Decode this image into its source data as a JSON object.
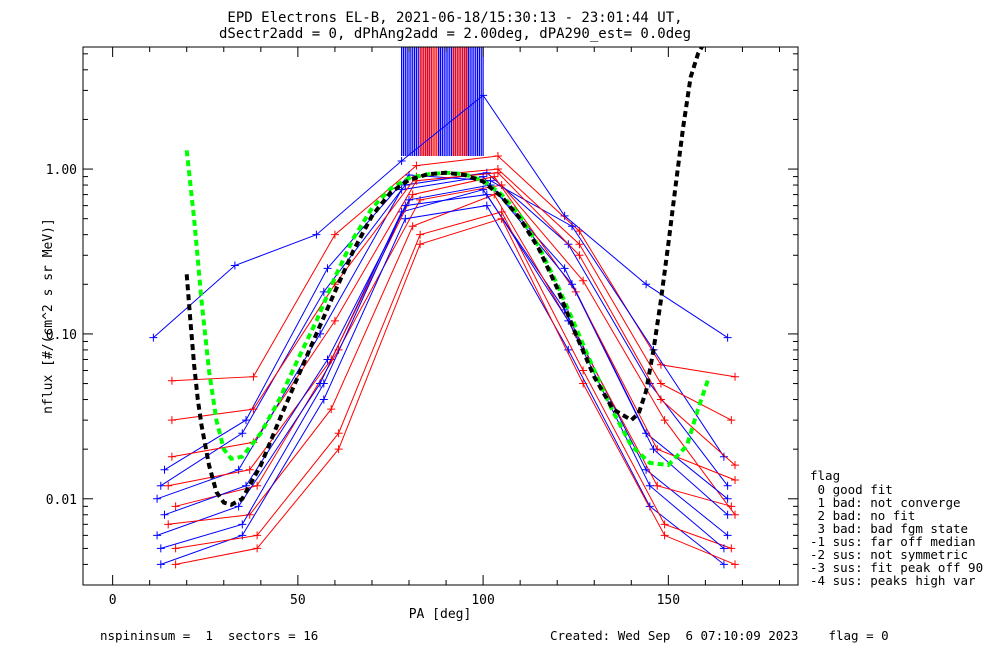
{
  "chart_data": {
    "type": "line",
    "title": "EPD Electrons EL-B, 2021-06-18/15:30:13 - 23:01:44 UT,",
    "subtitle": "dSectr2add = 0, dPhAng2add = 2.00deg, dPA290_est=   0.0deg",
    "xlabel": "PA [deg]",
    "ylabel": "nflux [#/(cm^2 s sr MeV)]",
    "xlim": [
      -8,
      185
    ],
    "ylim": [
      0.003,
      5.5
    ],
    "yscale": "log",
    "xticks": [
      {
        "v": 0,
        "label": "0"
      },
      {
        "v": 50,
        "label": "50"
      },
      {
        "v": 100,
        "label": "100"
      },
      {
        "v": 150,
        "label": "150"
      }
    ],
    "yticks": [
      {
        "v": 0.01,
        "label": "0.01"
      },
      {
        "v": 0.1,
        "label": "0.10"
      },
      {
        "v": 1.0,
        "label": "1.00"
      }
    ],
    "colors": {
      "blue": "#0000ff",
      "red": "#ff0000",
      "fit_black": "#000000",
      "fit_green": "#00ff00"
    },
    "series": [
      {
        "color": "blue",
        "x": [
          11,
          33,
          55,
          78,
          100,
          122,
          144,
          166
        ],
        "y": [
          0.095,
          0.26,
          0.4,
          1.12,
          2.8,
          0.52,
          0.2,
          0.095
        ]
      },
      {
        "color": "red",
        "x": [
          16,
          38,
          60,
          82,
          104,
          126,
          148,
          168
        ],
        "y": [
          0.052,
          0.055,
          0.4,
          1.05,
          1.2,
          0.42,
          0.065,
          0.055
        ]
      },
      {
        "color": "blue",
        "x": [
          13,
          35,
          57,
          79,
          101,
          123,
          145,
          166
        ],
        "y": [
          0.012,
          0.025,
          0.18,
          0.8,
          0.95,
          0.35,
          0.05,
          0.012
        ]
      },
      {
        "color": "red",
        "x": [
          17,
          39,
          61,
          83,
          105,
          127,
          149,
          168
        ],
        "y": [
          0.009,
          0.012,
          0.08,
          0.65,
          0.8,
          0.21,
          0.03,
          0.008
        ]
      },
      {
        "color": "blue",
        "x": [
          12,
          34,
          56,
          78,
          100,
          122,
          144,
          166
        ],
        "y": [
          0.006,
          0.009,
          0.05,
          0.55,
          0.75,
          0.14,
          0.015,
          0.006
        ]
      },
      {
        "color": "red",
        "x": [
          15,
          37,
          59,
          81,
          103,
          125,
          147,
          167
        ],
        "y": [
          0.007,
          0.008,
          0.035,
          0.45,
          0.7,
          0.1,
          0.012,
          0.009
        ]
      },
      {
        "color": "blue",
        "x": [
          14,
          36,
          58,
          80,
          102,
          124,
          146,
          165
        ],
        "y": [
          0.015,
          0.03,
          0.25,
          0.92,
          0.85,
          0.45,
          0.08,
          0.018
        ]
      },
      {
        "color": "red",
        "x": [
          16,
          38,
          60,
          82,
          104,
          126,
          148,
          168
        ],
        "y": [
          0.018,
          0.022,
          0.12,
          0.85,
          0.95,
          0.3,
          0.04,
          0.016
        ]
      },
      {
        "color": "blue",
        "x": [
          13,
          35,
          57,
          79,
          101,
          123,
          145,
          165
        ],
        "y": [
          0.004,
          0.006,
          0.04,
          0.5,
          0.6,
          0.08,
          0.009,
          0.004
        ]
      },
      {
        "color": "red",
        "x": [
          17,
          39,
          61,
          83,
          105,
          127,
          149,
          167
        ],
        "y": [
          0.005,
          0.006,
          0.025,
          0.4,
          0.55,
          0.06,
          0.007,
          0.005
        ]
      },
      {
        "color": "blue",
        "x": [
          12,
          34,
          56,
          78,
          100,
          122,
          144,
          166
        ],
        "y": [
          0.01,
          0.015,
          0.1,
          0.75,
          0.9,
          0.25,
          0.025,
          0.01
        ]
      },
      {
        "color": "red",
        "x": [
          15,
          37,
          59,
          81,
          103,
          125,
          147,
          168
        ],
        "y": [
          0.012,
          0.015,
          0.07,
          0.7,
          0.9,
          0.18,
          0.02,
          0.013
        ]
      },
      {
        "color": "blue",
        "x": [
          14,
          36,
          58,
          80,
          102,
          124,
          146,
          166
        ],
        "y": [
          0.008,
          0.012,
          0.07,
          0.65,
          0.8,
          0.2,
          0.02,
          0.008
        ]
      },
      {
        "color": "red",
        "x": [
          16,
          38,
          60,
          82,
          104,
          126,
          148,
          167
        ],
        "y": [
          0.03,
          0.035,
          0.2,
          0.9,
          1.0,
          0.35,
          0.05,
          0.03
        ]
      },
      {
        "color": "blue",
        "x": [
          13,
          35,
          57,
          79,
          101,
          123,
          145,
          165
        ],
        "y": [
          0.005,
          0.007,
          0.05,
          0.6,
          0.7,
          0.12,
          0.012,
          0.005
        ]
      },
      {
        "color": "red",
        "x": [
          17,
          39,
          61,
          83,
          105,
          127,
          149,
          168
        ],
        "y": [
          0.004,
          0.005,
          0.02,
          0.35,
          0.5,
          0.05,
          0.006,
          0.004
        ]
      }
    ],
    "fits": [
      {
        "color": "fit_green",
        "x": [
          20,
          22,
          24,
          26,
          28,
          30,
          32,
          35,
          40,
          45,
          50,
          55,
          60,
          65,
          70,
          75,
          80,
          85,
          90,
          95,
          100,
          105,
          110,
          115,
          120,
          125,
          130,
          135,
          140,
          145,
          150,
          155,
          158,
          161
        ],
        "y": [
          1.3,
          0.5,
          0.16,
          0.06,
          0.03,
          0.02,
          0.0175,
          0.018,
          0.025,
          0.04,
          0.07,
          0.12,
          0.22,
          0.38,
          0.58,
          0.76,
          0.88,
          0.93,
          0.95,
          0.93,
          0.85,
          0.7,
          0.52,
          0.34,
          0.2,
          0.11,
          0.06,
          0.034,
          0.021,
          0.0165,
          0.016,
          0.021,
          0.035,
          0.055
        ]
      },
      {
        "color": "fit_black",
        "x": [
          20,
          21,
          22,
          23,
          24,
          26,
          28,
          30,
          32,
          35,
          40,
          45,
          50,
          55,
          60,
          65,
          70,
          75,
          80,
          85,
          90,
          95,
          100,
          105,
          110,
          115,
          120,
          125,
          130,
          135,
          140,
          142,
          144,
          146,
          148,
          150,
          152,
          154,
          156,
          158,
          160
        ],
        "y": [
          0.23,
          0.12,
          0.065,
          0.04,
          0.028,
          0.016,
          0.011,
          0.0095,
          0.0092,
          0.01,
          0.016,
          0.03,
          0.055,
          0.1,
          0.18,
          0.32,
          0.52,
          0.72,
          0.86,
          0.93,
          0.95,
          0.92,
          0.84,
          0.68,
          0.5,
          0.33,
          0.19,
          0.1,
          0.055,
          0.035,
          0.03,
          0.033,
          0.045,
          0.08,
          0.16,
          0.35,
          0.8,
          1.8,
          3.6,
          5.0,
          6.0
        ]
      }
    ],
    "saturated_bands": [
      {
        "color": "blue",
        "xmin": 78,
        "xmax": 86
      },
      {
        "color": "red",
        "xmin": 83,
        "xmax": 88
      },
      {
        "color": "blue",
        "xmin": 88,
        "xmax": 96
      },
      {
        "color": "red",
        "xmin": 92,
        "xmax": 96
      },
      {
        "color": "blue",
        "xmin": 96,
        "xmax": 100
      }
    ]
  },
  "legend": {
    "title": "flag",
    "items": [
      " 0 good fit",
      " 1 bad: not converge",
      " 2 bad: no fit",
      " 3 bad: bad fgm state",
      "-1 sus: far off median",
      "-2 sus: not symmetric",
      "-3 sus: fit peak off 90",
      "-4 sus: peaks high var"
    ]
  },
  "footer": {
    "left": "nspininsum =  1  sectors = 16",
    "right": "Created: Wed Sep  6 07:10:09 2023    flag = 0"
  }
}
